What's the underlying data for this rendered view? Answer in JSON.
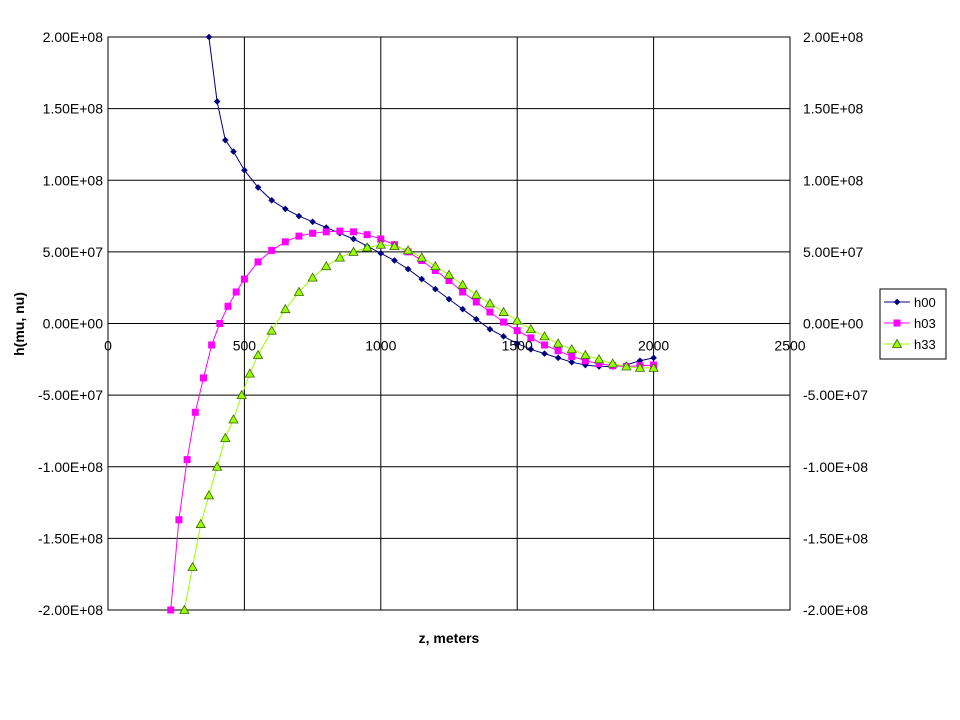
{
  "chart_data": {
    "type": "line",
    "title": "",
    "xlabel": "z, meters",
    "ylabel": "h(mu, nu)",
    "xlim": [
      0,
      2500
    ],
    "ylim": [
      -200000000,
      200000000
    ],
    "x_ticks": [
      0,
      500,
      1000,
      1500,
      2000,
      2500
    ],
    "x_tick_labels": [
      "0",
      "500",
      "1000",
      "1500",
      "2000",
      "2500"
    ],
    "y_ticks": [
      200000000,
      150000000,
      100000000,
      50000000,
      0,
      -50000000,
      -100000000,
      -150000000,
      -200000000
    ],
    "y_tick_labels": [
      "2.00E+08",
      "1.50E+08",
      "1.00E+08",
      "5.00E+07",
      "0.00E+00",
      "-5.00E+07",
      "-1.00E+08",
      "-1.50E+08",
      "-2.00E+08"
    ],
    "secondary_y_axis": true,
    "grid": true,
    "legend_position": "right",
    "series": [
      {
        "name": "h00",
        "color": "#000080",
        "marker": "diamond",
        "x": [
          370,
          400,
          430,
          460,
          500,
          550,
          600,
          650,
          700,
          750,
          800,
          850,
          900,
          950,
          1000,
          1050,
          1100,
          1150,
          1200,
          1250,
          1300,
          1350,
          1400,
          1450,
          1500,
          1550,
          1600,
          1650,
          1700,
          1750,
          1800,
          1850,
          1900,
          1950,
          2000
        ],
        "y": [
          200000000,
          155000000,
          128000000,
          120000000,
          107000000,
          95000000,
          86000000,
          80000000,
          75000000,
          71000000,
          67000000,
          63000000,
          59000000,
          54000000,
          49000000,
          44000000,
          38000000,
          31000000,
          24000000,
          17000000,
          10000000,
          3000000,
          -4000000,
          -9000000,
          -14000000,
          -18000000,
          -21000000,
          -24000000,
          -27000000,
          -29000000,
          -30000000,
          -30000000,
          -29000000,
          -26000000,
          -24000000
        ]
      },
      {
        "name": "h03",
        "color": "#FF00FF",
        "marker": "square",
        "x": [
          230,
          260,
          290,
          320,
          350,
          380,
          410,
          440,
          470,
          500,
          550,
          600,
          650,
          700,
          750,
          800,
          850,
          900,
          950,
          1000,
          1050,
          1100,
          1150,
          1200,
          1250,
          1300,
          1350,
          1400,
          1450,
          1500,
          1550,
          1600,
          1650,
          1700,
          1750,
          1800,
          1850,
          1900,
          1950,
          2000
        ],
        "y": [
          -200000000,
          -137000000,
          -95000000,
          -62000000,
          -38000000,
          -15000000,
          0,
          12000000,
          22000000,
          31000000,
          43000000,
          51000000,
          57000000,
          61000000,
          63000000,
          64000000,
          64500000,
          64000000,
          62000000,
          59000000,
          55000000,
          50000000,
          44000000,
          37000000,
          30000000,
          22000000,
          15000000,
          8000000,
          1000000,
          -5000000,
          -10000000,
          -15000000,
          -19000000,
          -23000000,
          -26000000,
          -28000000,
          -29500000,
          -30000000,
          -29500000,
          -29000000
        ]
      },
      {
        "name": "h33",
        "color": "#99FF00",
        "marker": "triangle",
        "x": [
          280,
          310,
          340,
          370,
          400,
          430,
          460,
          490,
          520,
          550,
          600,
          650,
          700,
          750,
          800,
          850,
          900,
          950,
          1000,
          1050,
          1100,
          1150,
          1200,
          1250,
          1300,
          1350,
          1400,
          1450,
          1500,
          1550,
          1600,
          1650,
          1700,
          1750,
          1800,
          1850,
          1900,
          1950,
          2000
        ],
        "y": [
          -200000000,
          -170000000,
          -140000000,
          -120000000,
          -100000000,
          -80000000,
          -67000000,
          -50000000,
          -35000000,
          -22000000,
          -5000000,
          10000000,
          22000000,
          32000000,
          40000000,
          46000000,
          50000000,
          53000000,
          55000000,
          54000000,
          51000000,
          46000000,
          40000000,
          34000000,
          27000000,
          20000000,
          14000000,
          8000000,
          2000000,
          -4000000,
          -9000000,
          -14000000,
          -18000000,
          -22000000,
          -25000000,
          -28000000,
          -30000000,
          -31000000,
          -31000000
        ]
      }
    ]
  }
}
